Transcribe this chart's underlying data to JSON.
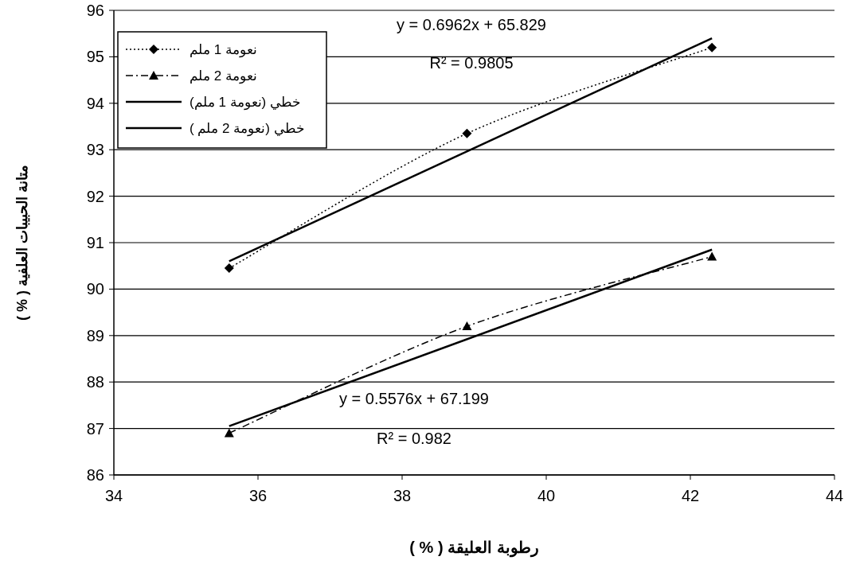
{
  "chart_data": {
    "type": "scatter",
    "xlabel": "رطوبة العليقة ( % )",
    "ylabel": "متانة الحبيبات العلفية ( % )",
    "xlim": [
      34,
      44
    ],
    "ylim": [
      86,
      96
    ],
    "xticks": [
      34,
      36,
      38,
      40,
      42,
      44
    ],
    "yticks": [
      86,
      87,
      88,
      89,
      90,
      91,
      92,
      93,
      94,
      95,
      96
    ],
    "grid": "y",
    "legend": "top left",
    "series": [
      {
        "name": "نعومة 1 ملم",
        "type": "line",
        "color": "#000000",
        "marker": "diamond",
        "line_style": "dotted",
        "x": [
          35.6,
          38.9,
          42.3
        ],
        "values": [
          90.45,
          93.35,
          95.2
        ]
      },
      {
        "name": "نعومة 2 ملم",
        "type": "line",
        "color": "#000000",
        "marker": "triangle",
        "line_style": "dashed",
        "x": [
          35.6,
          38.9,
          42.3
        ],
        "values": [
          86.9,
          89.2,
          90.7
        ]
      },
      {
        "name": "خطي (نعومة 1 ملم)",
        "type": "line",
        "color": "#000000",
        "marker": "none",
        "line_style": "solid",
        "x": [
          35.6,
          42.3
        ],
        "values": [
          90.6,
          95.4
        ]
      },
      {
        "name": "خطي (نعومة 2 ملم )",
        "type": "line",
        "color": "#000000",
        "marker": "none",
        "line_style": "solid",
        "x": [
          35.6,
          42.3
        ],
        "values": [
          87.05,
          90.85
        ]
      }
    ],
    "annotations": [
      "y = 0.6962x + 65.829",
      "R² = 0.9805",
      "y = 0.5576x + 67.199",
      "R² = 0.982"
    ]
  }
}
